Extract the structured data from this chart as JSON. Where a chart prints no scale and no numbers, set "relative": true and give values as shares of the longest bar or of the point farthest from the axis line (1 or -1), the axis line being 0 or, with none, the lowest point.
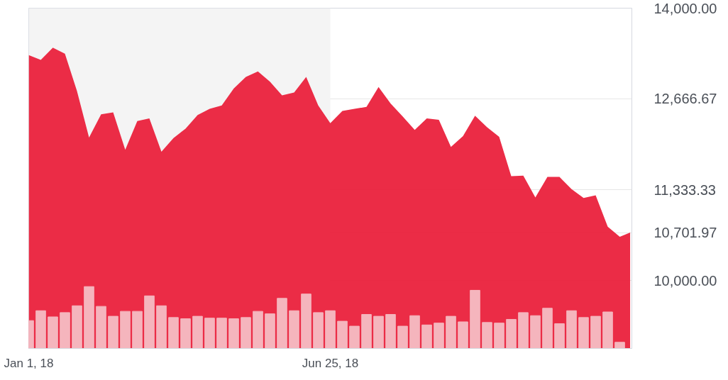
{
  "chart_data": [
    {
      "type": "area",
      "color": "#ea1c38",
      "x": [
        "2018-01-01",
        "2018-01-08",
        "2018-01-15",
        "2018-01-22",
        "2018-01-29",
        "2018-02-05",
        "2018-02-12",
        "2018-02-19",
        "2018-02-26",
        "2018-03-05",
        "2018-03-12",
        "2018-03-19",
        "2018-03-26",
        "2018-04-02",
        "2018-04-09",
        "2018-04-16",
        "2018-04-23",
        "2018-04-30",
        "2018-05-07",
        "2018-05-14",
        "2018-05-21",
        "2018-05-28",
        "2018-06-04",
        "2018-06-11",
        "2018-06-18",
        "2018-06-25",
        "2018-07-02",
        "2018-07-09",
        "2018-07-16",
        "2018-07-23",
        "2018-07-30",
        "2018-08-06",
        "2018-08-13",
        "2018-08-20",
        "2018-08-27",
        "2018-09-03",
        "2018-09-10",
        "2018-09-17",
        "2018-09-24",
        "2018-10-01",
        "2018-10-08",
        "2018-10-15",
        "2018-10-22",
        "2018-10-29",
        "2018-11-05",
        "2018-11-12",
        "2018-11-19",
        "2018-11-26",
        "2018-12-03",
        "2018-12-10",
        "2018-12-16"
      ],
      "values": [
        13310,
        13240,
        13420,
        13330,
        12780,
        12100,
        12440,
        12470,
        11920,
        12340,
        12380,
        11890,
        12090,
        12230,
        12430,
        12520,
        12570,
        12820,
        12990,
        13070,
        12920,
        12720,
        12760,
        12990,
        12570,
        12310,
        12490,
        12520,
        12550,
        12840,
        12600,
        12410,
        12210,
        12380,
        12360,
        11960,
        12120,
        12420,
        12250,
        12110,
        11530,
        11540,
        11220,
        11520,
        11520,
        11340,
        11210,
        11250,
        10790,
        10640,
        10701.97
      ],
      "xlim": [
        "2018-01-01",
        "2018-12-17"
      ],
      "xticks": [
        {
          "value": "2018-01-01",
          "label": "Jan 1, 18"
        },
        {
          "value": "2018-06-25",
          "label": "Jun 25, 18"
        }
      ],
      "ylim": [
        9000,
        14000
      ],
      "yticks": [
        {
          "value": 10000,
          "label": "10,000.00"
        },
        {
          "value": 10701.97,
          "label": "10,701.97"
        },
        {
          "value": 11333.33,
          "label": "11,333.33"
        },
        {
          "value": 12666.67,
          "label": "12,666.67"
        },
        {
          "value": 14000,
          "label": "14,000.00"
        }
      ],
      "grid": "y",
      "bands": [
        {
          "axis": "x",
          "from": "2018-01-01",
          "to": "2018-06-25",
          "color": "#f4f4f4"
        }
      ]
    },
    {
      "type": "bar",
      "color": "#f5b5bd",
      "relative": true,
      "tick_labels": false,
      "x": [
        "2018-01-01",
        "2018-01-08",
        "2018-01-15",
        "2018-01-22",
        "2018-01-29",
        "2018-02-05",
        "2018-02-12",
        "2018-02-19",
        "2018-02-26",
        "2018-03-05",
        "2018-03-12",
        "2018-03-19",
        "2018-03-26",
        "2018-04-02",
        "2018-04-09",
        "2018-04-16",
        "2018-04-23",
        "2018-04-30",
        "2018-05-07",
        "2018-05-14",
        "2018-05-21",
        "2018-05-28",
        "2018-06-04",
        "2018-06-11",
        "2018-06-18",
        "2018-06-25",
        "2018-07-02",
        "2018-07-09",
        "2018-07-16",
        "2018-07-23",
        "2018-07-30",
        "2018-08-06",
        "2018-08-13",
        "2018-08-20",
        "2018-08-27",
        "2018-09-03",
        "2018-09-10",
        "2018-09-17",
        "2018-09-24",
        "2018-10-01",
        "2018-10-08",
        "2018-10-15",
        "2018-10-22",
        "2018-10-29",
        "2018-11-05",
        "2018-11-12",
        "2018-11-19",
        "2018-11-26",
        "2018-12-03",
        "2018-12-10"
      ],
      "values": [
        0.45,
        0.61,
        0.51,
        0.58,
        0.69,
        1,
        0.68,
        0.52,
        0.6,
        0.6,
        0.85,
        0.69,
        0.5,
        0.48,
        0.52,
        0.49,
        0.49,
        0.48,
        0.5,
        0.6,
        0.56,
        0.81,
        0.61,
        0.88,
        0.58,
        0.61,
        0.44,
        0.36,
        0.55,
        0.52,
        0.55,
        0.36,
        0.53,
        0.38,
        0.41,
        0.52,
        0.43,
        0.94,
        0.42,
        0.41,
        0.47,
        0.58,
        0.53,
        0.65,
        0.4,
        0.61,
        0.5,
        0.52,
        0.59,
        0.1
      ],
      "xlim": [
        "2018-01-01",
        "2018-12-17"
      ]
    }
  ]
}
